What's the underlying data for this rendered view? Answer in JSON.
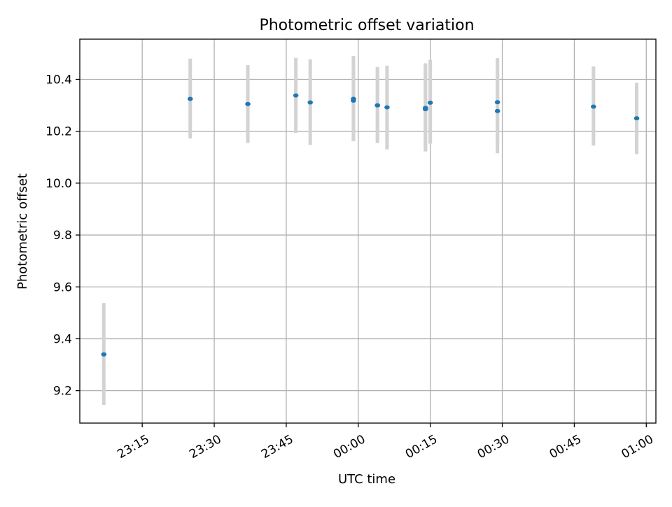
{
  "chart_data": {
    "type": "scatter",
    "title": "Photometric offset variation",
    "xlabel": "UTC time",
    "ylabel": "Photometric offset",
    "x_tick_labels": [
      "23:15",
      "23:30",
      "23:45",
      "00:00",
      "00:15",
      "00:30",
      "00:45",
      "01:00"
    ],
    "x_tick_minutes": [
      0,
      15,
      30,
      45,
      60,
      75,
      90,
      105
    ],
    "y_ticks": [
      9.2,
      9.4,
      9.6,
      9.8,
      10.0,
      10.2,
      10.4
    ],
    "xlim_minutes": [
      -13,
      107
    ],
    "ylim": [
      9.075,
      10.555
    ],
    "grid": true,
    "series": [
      {
        "x_time": [
          "23:07",
          "23:25",
          "23:37",
          "23:47",
          "23:50",
          "23:59",
          "23:59",
          "00:04",
          "00:04",
          "00:06",
          "00:14",
          "00:14",
          "00:15",
          "00:29",
          "00:29",
          "00:49",
          "00:58"
        ],
        "y": [
          9.34,
          10.325,
          10.305,
          10.338,
          10.311,
          10.325,
          10.318,
          10.3,
          10.3,
          10.292,
          10.285,
          10.29,
          10.31,
          10.312,
          10.278,
          10.295,
          10.25
        ],
        "err_low": [
          9.145,
          10.172,
          10.155,
          10.193,
          10.148,
          10.162,
          10.162,
          10.155,
          10.155,
          10.13,
          10.122,
          10.13,
          10.152,
          10.145,
          10.115,
          10.145,
          10.112
        ],
        "err_high": [
          9.538,
          10.48,
          10.455,
          10.483,
          10.477,
          10.49,
          10.477,
          10.447,
          10.447,
          10.453,
          10.452,
          10.462,
          10.475,
          10.482,
          10.443,
          10.45,
          10.387
        ]
      }
    ],
    "colors": {
      "point": "#1f77b4",
      "errorbar": "#d3d3d3",
      "grid": "#b0b0b0"
    }
  }
}
